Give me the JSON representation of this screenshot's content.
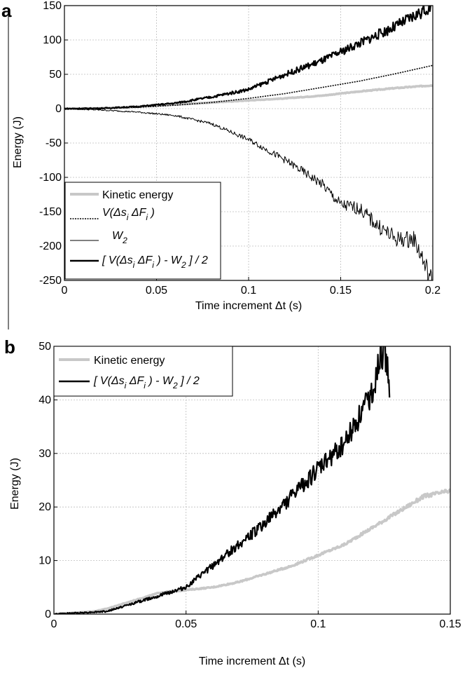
{
  "chart_data": [
    {
      "panel": "a",
      "type": "line",
      "xlabel": "Time increment Δt (s)",
      "ylabel": "Energy (J)",
      "xlim": [
        0,
        0.2
      ],
      "ylim": [
        -250,
        150
      ],
      "xticks": [
        "0",
        "0.05",
        "0.1",
        "0.15",
        "0.2"
      ],
      "yticks": [
        "-250",
        "-200",
        "-150",
        "-100",
        "-50",
        "0",
        "50",
        "100",
        "150"
      ],
      "grid": true,
      "legend_position": "bottom-left",
      "series": [
        {
          "name": "Kinetic energy",
          "style": "light-gray-thick",
          "x": [
            0,
            0.02,
            0.04,
            0.06,
            0.08,
            0.1,
            0.12,
            0.14,
            0.16,
            0.18,
            0.2
          ],
          "y": [
            0,
            0.5,
            3,
            6,
            9,
            12,
            15,
            19,
            25,
            30,
            34
          ]
        },
        {
          "name": "V(Δs_i ΔF_i)",
          "style": "black-dotted",
          "x": [
            0,
            0.02,
            0.04,
            0.06,
            0.08,
            0.1,
            0.12,
            0.14,
            0.16,
            0.18,
            0.2
          ],
          "y": [
            0,
            0.5,
            2,
            5,
            9,
            15,
            22,
            31,
            40,
            51,
            63
          ]
        },
        {
          "name": "W_2",
          "style": "black-thin",
          "x": [
            0,
            0.02,
            0.04,
            0.06,
            0.08,
            0.1,
            0.12,
            0.14,
            0.15,
            0.16,
            0.17,
            0.18,
            0.19,
            0.2
          ],
          "y": [
            0,
            -2,
            -5,
            -10,
            -22,
            -45,
            -75,
            -110,
            -140,
            -145,
            -170,
            -190,
            -190,
            -255
          ]
        },
        {
          "name": "[ V(Δs_i ΔF_i) - W_2 ] / 2",
          "style": "black-thick",
          "x": [
            0,
            0.02,
            0.04,
            0.06,
            0.08,
            0.1,
            0.12,
            0.14,
            0.16,
            0.18,
            0.2
          ],
          "y": [
            0,
            0.5,
            3,
            8,
            17,
            28,
            50,
            70,
            95,
            120,
            150
          ]
        }
      ]
    },
    {
      "panel": "b",
      "type": "line",
      "xlabel": "Time increment Δt (s)",
      "ylabel": "Energy (J)",
      "xlim": [
        0,
        0.15
      ],
      "ylim": [
        0,
        50
      ],
      "xticks": [
        "0",
        "0.05",
        "0.1",
        "0.15"
      ],
      "yticks": [
        "0",
        "10",
        "20",
        "30",
        "40",
        "50"
      ],
      "grid": true,
      "legend_position": "top-left",
      "series": [
        {
          "name": "Kinetic energy",
          "style": "light-gray-thick",
          "x": [
            0,
            0.015,
            0.02,
            0.03,
            0.04,
            0.05,
            0.06,
            0.07,
            0.08,
            0.09,
            0.1,
            0.11,
            0.12,
            0.13,
            0.14,
            0.15
          ],
          "y": [
            0,
            0.5,
            1,
            2.5,
            4,
            4.5,
            5,
            6,
            7.5,
            9,
            11,
            13,
            16,
            19,
            22,
            23
          ]
        },
        {
          "name": "[ V(Δs_i ΔF_i) - W_2 ] / 2",
          "style": "black-thick",
          "x": [
            0,
            0.02,
            0.03,
            0.04,
            0.05,
            0.06,
            0.07,
            0.08,
            0.09,
            0.1,
            0.11,
            0.12,
            0.125,
            0.127
          ],
          "y": [
            0,
            0.5,
            2,
            3.5,
            5,
            9,
            13,
            17,
            22,
            27,
            32,
            41,
            50,
            43
          ]
        }
      ]
    }
  ]
}
